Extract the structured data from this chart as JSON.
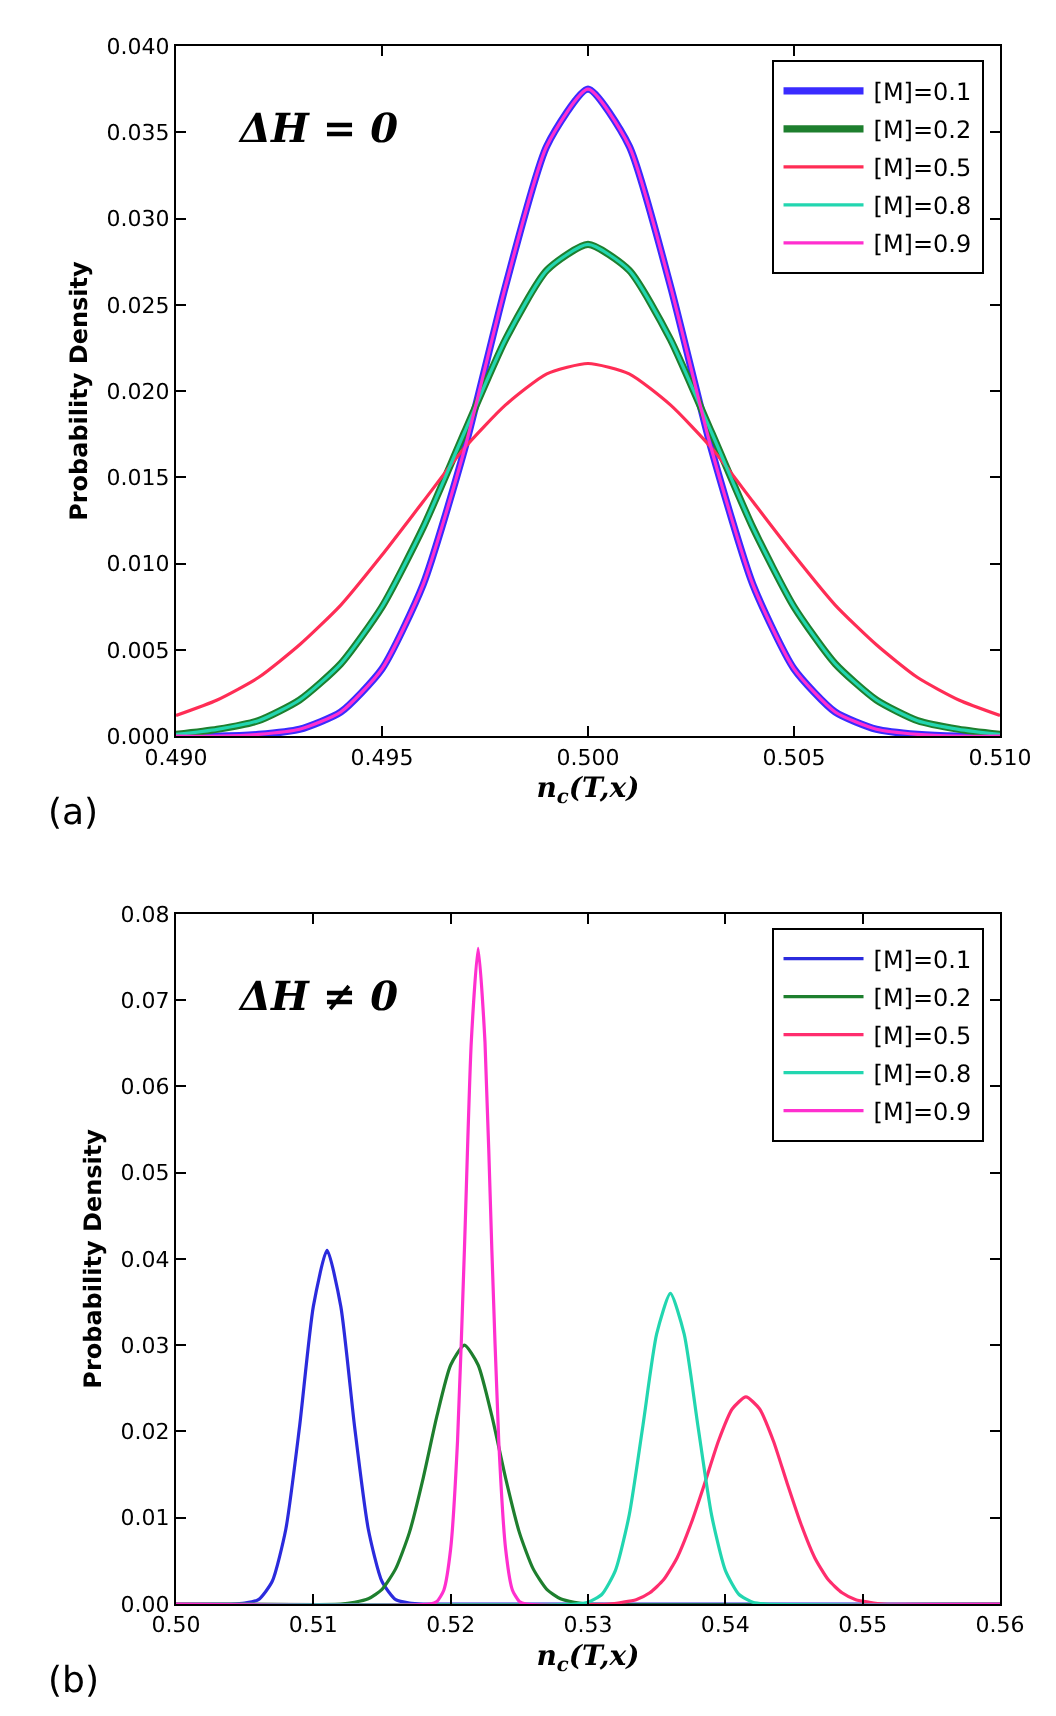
{
  "chart_data": [
    {
      "type": "line",
      "xlabel": "n$_{c}$(T,x)",
      "ylabel": "Probability Density",
      "annotations": [
        "ΔH = 0",
        "(a)"
      ],
      "xlim": [
        0.49,
        0.51
      ],
      "xticks": [
        {
          "value": 0.49,
          "label": "0.490"
        },
        {
          "value": 0.495,
          "label": "0.495"
        },
        {
          "value": 0.5,
          "label": "0.500"
        },
        {
          "value": 0.505,
          "label": "0.505"
        },
        {
          "value": 0.51,
          "label": "0.510"
        }
      ],
      "ylim": [
        0,
        0.04
      ],
      "yticks": [
        {
          "value": 0,
          "label": "0.000"
        },
        {
          "value": 0.005,
          "label": "0.005"
        },
        {
          "value": 0.01,
          "label": "0.010"
        },
        {
          "value": 0.015,
          "label": "0.015"
        },
        {
          "value": 0.02,
          "label": "0.020"
        },
        {
          "value": 0.025,
          "label": "0.025"
        },
        {
          "value": 0.03,
          "label": "0.030"
        },
        {
          "value": 0.035,
          "label": "0.035"
        },
        {
          "value": 0.04,
          "label": "0.040"
        }
      ],
      "legend": "top right",
      "marker": "none",
      "line_style": "solid",
      "x": [
        0.49,
        0.491,
        0.492,
        0.493,
        0.494,
        0.495,
        0.496,
        0.497,
        0.498,
        0.499,
        0.5,
        0.501,
        0.502,
        0.503,
        0.504,
        0.505,
        0.506,
        0.507,
        0.508,
        0.509,
        0.51
      ],
      "series": [
        {
          "name": "[M]=0.1",
          "color": "#3a2bff",
          "values": [
            0,
            0,
            0.0001,
            0.0004,
            0.0014,
            0.0039,
            0.0088,
            0.0166,
            0.0261,
            0.0342,
            0.0375,
            0.0342,
            0.0261,
            0.0166,
            0.0088,
            0.0039,
            0.0014,
            0.0004,
            0.0001,
            0,
            0
          ]
        },
        {
          "name": "[M]=0.2",
          "color": "#1e7f2e",
          "values": [
            0.0001,
            0.0004,
            0.0009,
            0.0021,
            0.0042,
            0.0075,
            0.0121,
            0.0176,
            0.023,
            0.027,
            0.0285,
            0.027,
            0.023,
            0.0176,
            0.0121,
            0.0075,
            0.0042,
            0.0021,
            0.0009,
            0.0004,
            0.0001
          ]
        },
        {
          "name": "[M]=0.5",
          "color": "#ff2d55",
          "values": [
            0.0012,
            0.0021,
            0.0034,
            0.0053,
            0.0076,
            0.0105,
            0.0136,
            0.0167,
            0.0192,
            0.021,
            0.0216,
            0.021,
            0.0192,
            0.0167,
            0.0136,
            0.0105,
            0.0076,
            0.0053,
            0.0034,
            0.0021,
            0.0012
          ]
        },
        {
          "name": "[M]=0.8",
          "color": "#22d6b0",
          "values": [
            0.0001,
            0.0004,
            0.0009,
            0.0021,
            0.0042,
            0.0075,
            0.0121,
            0.0176,
            0.023,
            0.027,
            0.0285,
            0.027,
            0.023,
            0.0176,
            0.0121,
            0.0075,
            0.0042,
            0.0021,
            0.0009,
            0.0004,
            0.0001
          ]
        },
        {
          "name": "[M]=0.9",
          "color": "#ff2fcf",
          "values": [
            0,
            0,
            0.0001,
            0.0004,
            0.0014,
            0.0039,
            0.0088,
            0.0166,
            0.0261,
            0.0342,
            0.0375,
            0.0342,
            0.0261,
            0.0166,
            0.0088,
            0.0039,
            0.0014,
            0.0004,
            0.0001,
            0,
            0
          ]
        }
      ]
    },
    {
      "type": "line",
      "xlabel": "n$_{c}$(T,x)",
      "ylabel": "Probability Density",
      "annotations": [
        "ΔH ≠ 0",
        "(b)"
      ],
      "xlim": [
        0.5,
        0.56
      ],
      "xticks": [
        {
          "value": 0.5,
          "label": "0.50"
        },
        {
          "value": 0.51,
          "label": "0.51"
        },
        {
          "value": 0.52,
          "label": "0.52"
        },
        {
          "value": 0.53,
          "label": "0.53"
        },
        {
          "value": 0.54,
          "label": "0.54"
        },
        {
          "value": 0.55,
          "label": "0.55"
        },
        {
          "value": 0.56,
          "label": "0.56"
        }
      ],
      "ylim": [
        0,
        0.08
      ],
      "yticks": [
        {
          "value": 0,
          "label": "0.00"
        },
        {
          "value": 0.01,
          "label": "0.01"
        },
        {
          "value": 0.02,
          "label": "0.02"
        },
        {
          "value": 0.03,
          "label": "0.03"
        },
        {
          "value": 0.04,
          "label": "0.04"
        },
        {
          "value": 0.05,
          "label": "0.05"
        },
        {
          "value": 0.06,
          "label": "0.06"
        },
        {
          "value": 0.07,
          "label": "0.07"
        },
        {
          "value": 0.08,
          "label": "0.08"
        }
      ],
      "legend": "top right",
      "marker": "none",
      "line_style": "solid",
      "series": [
        {
          "name": "[M]=0.1",
          "color": "#2b2bdd",
          "x": [
            0.5,
            0.504,
            0.505,
            0.506,
            0.507,
            0.508,
            0.509,
            0.51,
            0.511,
            0.512,
            0.513,
            0.514,
            0.515,
            0.516,
            0.517,
            0.518,
            0.56
          ],
          "values": [
            0,
            0,
            0.0001,
            0.0005,
            0.0026,
            0.0087,
            0.0206,
            0.0345,
            0.041,
            0.0345,
            0.0206,
            0.0087,
            0.0026,
            0.0005,
            0.0001,
            0,
            0
          ]
        },
        {
          "name": "[M]=0.2",
          "color": "#1e7f2e",
          "x": [
            0.5,
            0.512,
            0.513,
            0.514,
            0.515,
            0.516,
            0.517,
            0.518,
            0.519,
            0.52,
            0.521,
            0.522,
            0.523,
            0.524,
            0.525,
            0.526,
            0.527,
            0.528,
            0.529,
            0.53,
            0.56
          ],
          "values": [
            0,
            0,
            0.0002,
            0.0006,
            0.0017,
            0.0041,
            0.0083,
            0.0146,
            0.0218,
            0.0277,
            0.03,
            0.0277,
            0.0218,
            0.0146,
            0.0083,
            0.0041,
            0.0017,
            0.0006,
            0.0002,
            0,
            0
          ]
        },
        {
          "name": "[M]=0.5",
          "color": "#ff2d6e",
          "x": [
            0.5,
            0.5315,
            0.5325,
            0.5335,
            0.5345,
            0.5355,
            0.5365,
            0.5375,
            0.5385,
            0.5395,
            0.5405,
            0.5415,
            0.5425,
            0.5435,
            0.5445,
            0.5455,
            0.5465,
            0.5475,
            0.5485,
            0.5495,
            0.5505,
            0.5515,
            0.56
          ],
          "values": [
            0,
            0,
            0.0002,
            0.0005,
            0.0013,
            0.0028,
            0.0054,
            0.0093,
            0.014,
            0.0189,
            0.0226,
            0.024,
            0.0226,
            0.0189,
            0.014,
            0.0093,
            0.0054,
            0.0028,
            0.0013,
            0.0005,
            0.0002,
            0,
            0
          ]
        },
        {
          "name": "[M]=0.8",
          "color": "#22d6b0",
          "x": [
            0.5,
            0.529,
            0.53,
            0.531,
            0.532,
            0.533,
            0.534,
            0.535,
            0.536,
            0.537,
            0.538,
            0.539,
            0.54,
            0.541,
            0.542,
            0.543,
            0.56
          ],
          "values": [
            0,
            0,
            0.0002,
            0.0011,
            0.0039,
            0.0103,
            0.0207,
            0.0313,
            0.036,
            0.0313,
            0.0207,
            0.0103,
            0.0039,
            0.0011,
            0.0002,
            0,
            0
          ]
        },
        {
          "name": "[M]=0.9",
          "color": "#ff2fcf",
          "x": [
            0.5,
            0.5185,
            0.519,
            0.5195,
            0.52,
            0.5205,
            0.521,
            0.5215,
            0.522,
            0.5225,
            0.523,
            0.5235,
            0.524,
            0.5245,
            0.525,
            0.5255,
            0.56
          ],
          "values": [
            0,
            0,
            0.0003,
            0.0016,
            0.0064,
            0.0189,
            0.041,
            0.0651,
            0.076,
            0.0651,
            0.041,
            0.0189,
            0.0064,
            0.0016,
            0.0003,
            0,
            0
          ]
        }
      ]
    }
  ]
}
